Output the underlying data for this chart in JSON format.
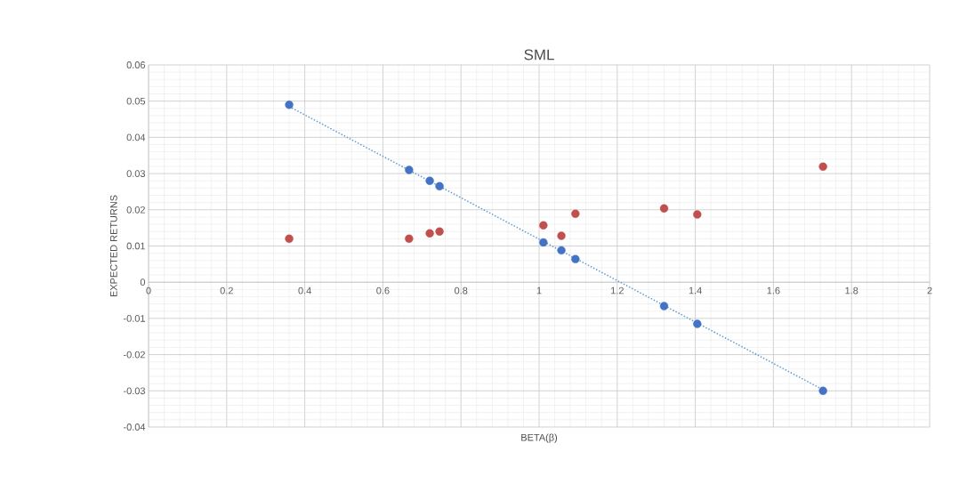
{
  "chart_data": {
    "type": "scatter",
    "title": "SML",
    "xlabel": "BETA(β)",
    "ylabel": "EXPECTED RETURNS",
    "xlim": [
      0,
      2
    ],
    "xticks": [
      0,
      0.2,
      0.4,
      0.6,
      0.8,
      1,
      1.2,
      1.4,
      1.6,
      1.8,
      2
    ],
    "ylim": [
      -0.04,
      0.06
    ],
    "yticks": [
      -0.04,
      -0.03,
      -0.02,
      -0.01,
      0,
      0.01,
      0.02,
      0.03,
      0.04,
      0.05,
      0.06
    ],
    "grid": true,
    "marker": "circle",
    "series": [
      {
        "color": "#4472c4",
        "x": [
          0.36,
          0.667,
          0.72,
          0.745,
          1.011,
          1.057,
          1.093,
          1.32,
          1.405,
          1.727
        ],
        "values": [
          0.049,
          0.031,
          0.028,
          0.0265,
          0.011,
          0.0088,
          0.0064,
          -0.0066,
          -0.0115,
          -0.03
        ]
      },
      {
        "color": "#c0504d",
        "x": [
          0.36,
          0.667,
          0.72,
          0.745,
          1.011,
          1.057,
          1.093,
          1.32,
          1.405,
          1.727
        ],
        "values": [
          0.012,
          0.012,
          0.0135,
          0.014,
          0.0157,
          0.0128,
          0.0189,
          0.0204,
          0.0187,
          0.0319
        ]
      },
      {
        "type": "line",
        "color": "#5b9bd5",
        "line_style": "dotted",
        "marker": "none",
        "x": [
          0.36,
          1.727
        ],
        "values": [
          0.0485,
          -0.0297
        ]
      }
    ]
  }
}
